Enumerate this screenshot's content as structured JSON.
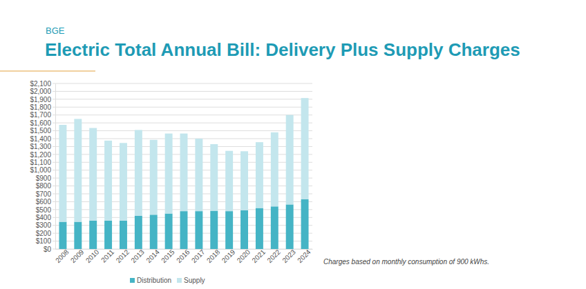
{
  "chart_data": {
    "type": "bar",
    "subtitle": "BGE",
    "title": "Electric Total Annual Bill: Delivery Plus Supply Charges",
    "annotations": [
      "Charges based on monthly consumption of 900 kWhs."
    ],
    "categories": [
      "2008",
      "2009",
      "2010",
      "2011",
      "2012",
      "2013",
      "2014",
      "2015",
      "2016",
      "2017",
      "2018",
      "2019",
      "2020",
      "2021",
      "2022",
      "2023",
      "2024"
    ],
    "series": [
      {
        "name": "Distribution",
        "color": "#45b4c5",
        "values": [
          345,
          345,
          360,
          360,
          360,
          420,
          435,
          450,
          480,
          480,
          485,
          480,
          490,
          520,
          540,
          565,
          630
        ]
      },
      {
        "name": "Supply",
        "color": "#c3e6ed",
        "values": [
          1230,
          1305,
          1175,
          1015,
          985,
          1090,
          950,
          1015,
          985,
          920,
          845,
          765,
          750,
          835,
          940,
          1135,
          1285
        ]
      }
    ],
    "stacked": true,
    "grid": true,
    "legend": "bottom",
    "ylim": [
      0,
      2100
    ],
    "yticks": [
      {
        "value": 0,
        "label": "$0"
      },
      {
        "value": 100,
        "label": "$100"
      },
      {
        "value": 200,
        "label": "$200"
      },
      {
        "value": 300,
        "label": "$300"
      },
      {
        "value": 400,
        "label": "$400"
      },
      {
        "value": 500,
        "label": "$500"
      },
      {
        "value": 600,
        "label": "$600"
      },
      {
        "value": 700,
        "label": "$700"
      },
      {
        "value": 800,
        "label": "$800"
      },
      {
        "value": 900,
        "label": "$900"
      },
      {
        "value": 1000,
        "label": "$1,000"
      },
      {
        "value": 1100,
        "label": "$1,100"
      },
      {
        "value": 1200,
        "label": "$1,200"
      },
      {
        "value": 1300,
        "label": "$1,300"
      },
      {
        "value": 1400,
        "label": "$1,400"
      },
      {
        "value": 1500,
        "label": "$1,500"
      },
      {
        "value": 1600,
        "label": "$1,600"
      },
      {
        "value": 1700,
        "label": "$1,700"
      },
      {
        "value": 1800,
        "label": "$1,800"
      },
      {
        "value": 1900,
        "label": "$1,900"
      },
      {
        "value": 2000,
        "label": "$2,000"
      },
      {
        "value": 2100,
        "label": "$2,100"
      }
    ]
  }
}
